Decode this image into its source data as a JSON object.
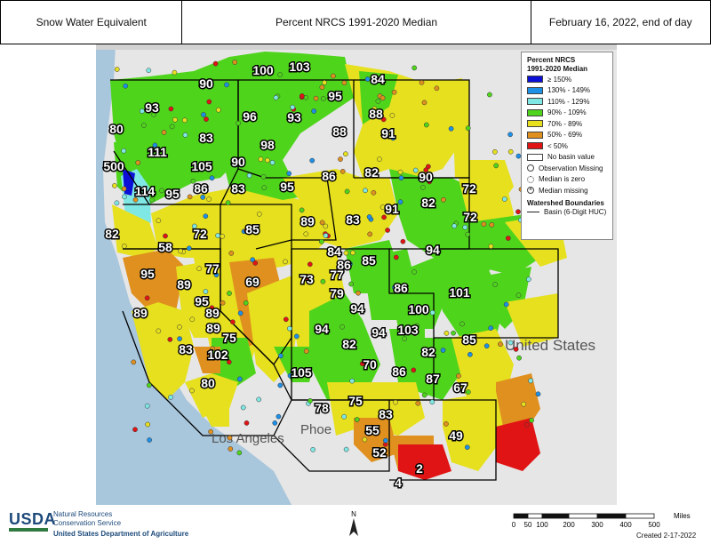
{
  "header": {
    "left": "Snow Water Equivalent",
    "center": "Percent NRCS 1991-2020 Median",
    "right": "February 16, 2022, end of day"
  },
  "map": {
    "ocean_color": "#a8c6dc",
    "land_color": "#e6e6e6",
    "basemap_labels": [
      {
        "name": "state-label-los-angeles",
        "text": "Los Angeles"
      },
      {
        "name": "state-label-phoenix",
        "text": "Phoe"
      },
      {
        "name": "country-label-us",
        "text": "United States"
      }
    ],
    "basin_values": [
      {
        "value": "100"
      },
      {
        "value": "103"
      },
      {
        "value": "90"
      },
      {
        "value": "84"
      },
      {
        "value": "95"
      },
      {
        "value": "93"
      },
      {
        "value": "96"
      },
      {
        "value": "93"
      },
      {
        "value": "88"
      },
      {
        "value": "80"
      },
      {
        "value": "83"
      },
      {
        "value": "88"
      },
      {
        "value": "91"
      },
      {
        "value": "111"
      },
      {
        "value": "98"
      },
      {
        "value": "500"
      },
      {
        "value": "105"
      },
      {
        "value": "90"
      },
      {
        "value": "86"
      },
      {
        "value": "82"
      },
      {
        "value": "90"
      },
      {
        "value": "114"
      },
      {
        "value": "95"
      },
      {
        "value": "86"
      },
      {
        "value": "83"
      },
      {
        "value": "95"
      },
      {
        "value": "72"
      },
      {
        "value": "91"
      },
      {
        "value": "82"
      },
      {
        "value": "89"
      },
      {
        "value": "83"
      },
      {
        "value": "72"
      },
      {
        "value": "82"
      },
      {
        "value": "72"
      },
      {
        "value": "85"
      },
      {
        "value": "58"
      },
      {
        "value": "84"
      },
      {
        "value": "94"
      },
      {
        "value": "86"
      },
      {
        "value": "85"
      },
      {
        "value": "77"
      },
      {
        "value": "77"
      },
      {
        "value": "73"
      },
      {
        "value": "95"
      },
      {
        "value": "69"
      },
      {
        "value": "89"
      },
      {
        "value": "79"
      },
      {
        "value": "86"
      },
      {
        "value": "101"
      },
      {
        "value": "95"
      },
      {
        "value": "94"
      },
      {
        "value": "100"
      },
      {
        "value": "89"
      },
      {
        "value": "89"
      },
      {
        "value": "89"
      },
      {
        "value": "75"
      },
      {
        "value": "94"
      },
      {
        "value": "94"
      },
      {
        "value": "103"
      },
      {
        "value": "85"
      },
      {
        "value": "83"
      },
      {
        "value": "82"
      },
      {
        "value": "82"
      },
      {
        "value": "102"
      },
      {
        "value": "105"
      },
      {
        "value": "70"
      },
      {
        "value": "86"
      },
      {
        "value": "87"
      },
      {
        "value": "80"
      },
      {
        "value": "67"
      },
      {
        "value": "78"
      },
      {
        "value": "75"
      },
      {
        "value": "83"
      },
      {
        "value": "55"
      },
      {
        "value": "49"
      },
      {
        "value": "52"
      },
      {
        "value": "2"
      },
      {
        "value": "4"
      }
    ]
  },
  "legend": {
    "title_line1": "Percent NRCS",
    "title_line2": "1991-2020 Median",
    "classes": [
      {
        "label": "≥ 150%",
        "color": "#0c10d6"
      },
      {
        "label": "130% - 149%",
        "color": "#1e90e6"
      },
      {
        "label": "110% - 129%",
        "color": "#7fe8e4"
      },
      {
        "label": "90% - 109%",
        "color": "#4fd41c"
      },
      {
        "label": "70% - 89%",
        "color": "#e6e01e"
      },
      {
        "label": "50% - 69%",
        "color": "#e0901e"
      },
      {
        "label": "< 50%",
        "color": "#e01414"
      },
      {
        "label": "No basin value",
        "color": "#ffffff"
      }
    ],
    "symbols": [
      {
        "label": "Observation Missing"
      },
      {
        "label": "Median is zero"
      },
      {
        "label": "Median missing"
      }
    ],
    "boundaries_title": "Watershed Boundaries",
    "boundary_label": "Basin (6-Digit HUC)"
  },
  "footer": {
    "usda": "USDA",
    "agency_line1": "Natural Resources",
    "agency_line2": "Conservation Service",
    "department": "United States Department of Agriculture",
    "north": "N",
    "scale_unit": "Miles",
    "scale_ticks": [
      "0",
      "50",
      "100",
      "200",
      "300",
      "400",
      "500"
    ],
    "created": "Created 2-17-2022"
  }
}
